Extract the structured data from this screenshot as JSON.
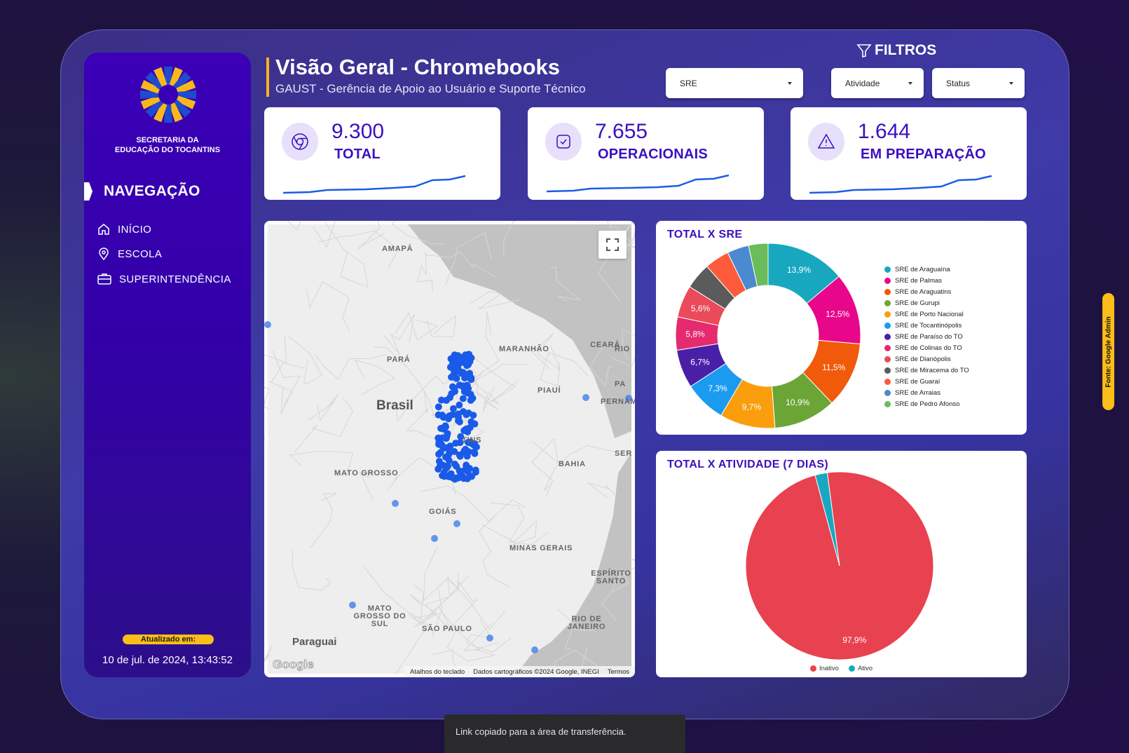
{
  "sidebar": {
    "org_line1": "SECRETARIA DA",
    "org_line2": "EDUCAÇÃO DO TOCANTINS",
    "nav_heading": "NAVEGAÇÃO",
    "items": [
      {
        "label": "INÍCIO",
        "icon": "home-icon"
      },
      {
        "label": "ESCOLA",
        "icon": "map-pin-icon"
      },
      {
        "label": "SUPERINTENDÊNCIA",
        "icon": "briefcase-icon"
      }
    ],
    "updated_label": "Atualizado em:",
    "updated_value": "10 de jul. de 2024, 13:43:52"
  },
  "header": {
    "title": "Visão Geral - Chromebooks",
    "subtitle": "GAUST - Gerência de Apoio ao Usuário e Suporte Técnico"
  },
  "filters": {
    "heading": "FILTROS",
    "sre": "SRE",
    "atividade": "Atividade",
    "status": "Status"
  },
  "kpis": [
    {
      "value": "9.300",
      "label": "TOTAL",
      "icon": "chrome-icon"
    },
    {
      "value": "7.655",
      "label": "OPERACIONAIS",
      "icon": "check-square-icon"
    },
    {
      "value": "1.644",
      "label": "EM PREPARAÇÃO",
      "icon": "warning-icon"
    }
  ],
  "map": {
    "labels": [
      "AMAPÁ",
      "PARÁ",
      "MARANHÃO",
      "CEARÁ",
      "RIO",
      "PIAUÍ",
      "PERNAMBU",
      "Brasil",
      "MATO GROSSO",
      "BAHIA",
      "GOIÁS",
      "MINAS GERAIS",
      "ESPÍRITO SANTO",
      "MATO GROSSO DO SUL",
      "SÃO PAULO",
      "RIO DE JANEIRO",
      "Paraguai",
      "TINS",
      "SER",
      "PA"
    ],
    "footer": {
      "shortcuts": "Atalhos do teclado",
      "data": "Dados cartográficos ©2024 Google, INEGI",
      "terms": "Termos"
    },
    "logo": "Google"
  },
  "source_tab": "Fonte: Google Admin",
  "toast": "Link copiado para a área de transferência.",
  "chart_data": [
    {
      "type": "pie",
      "title": "TOTAL X SRE",
      "donut": true,
      "legend": "right",
      "categories": [
        "SRE de Araguaína",
        "SRE de Palmas",
        "SRE de Araguatins",
        "SRE de Gurupi",
        "SRE de Porto Nacional",
        "SRE de Tocantinópolis",
        "SRE de Paraíso do TO",
        "SRE de Colinas do TO",
        "SRE de Dianópolis",
        "SRE de Miracema do TO",
        "SRE de Guaraí",
        "SRE de Arraias",
        "SRE de Pedro Afonso"
      ],
      "values": [
        13.9,
        12.5,
        11.5,
        10.9,
        9.7,
        7.3,
        6.7,
        5.8,
        5.6,
        4.6,
        4.3,
        3.8,
        3.4
      ],
      "labels": [
        "13,9%",
        "12,5%",
        "11,5%",
        "10,9%",
        "9,7%",
        "7,3%",
        "6,7%",
        "5,8%",
        "5,6%",
        "",
        "",
        "",
        ""
      ],
      "colors": [
        "#17a8c0",
        "#e8078a",
        "#f05a0a",
        "#6aa535",
        "#fb9e0d",
        "#1a9bf0",
        "#4a1fa8",
        "#e52a6f",
        "#ea4a59",
        "#5b5b5b",
        "#fd5b3c",
        "#4b8ad0",
        "#6abd5a"
      ]
    },
    {
      "type": "pie",
      "title": "TOTAL X ATIVIDADE (7 DIAS)",
      "legend": "bottom",
      "categories": [
        "Inativo",
        "Ativo"
      ],
      "values": [
        97.9,
        2.1
      ],
      "labels": [
        "97,9%",
        ""
      ],
      "colors": [
        "#e8414f",
        "#17a8c0"
      ]
    }
  ]
}
